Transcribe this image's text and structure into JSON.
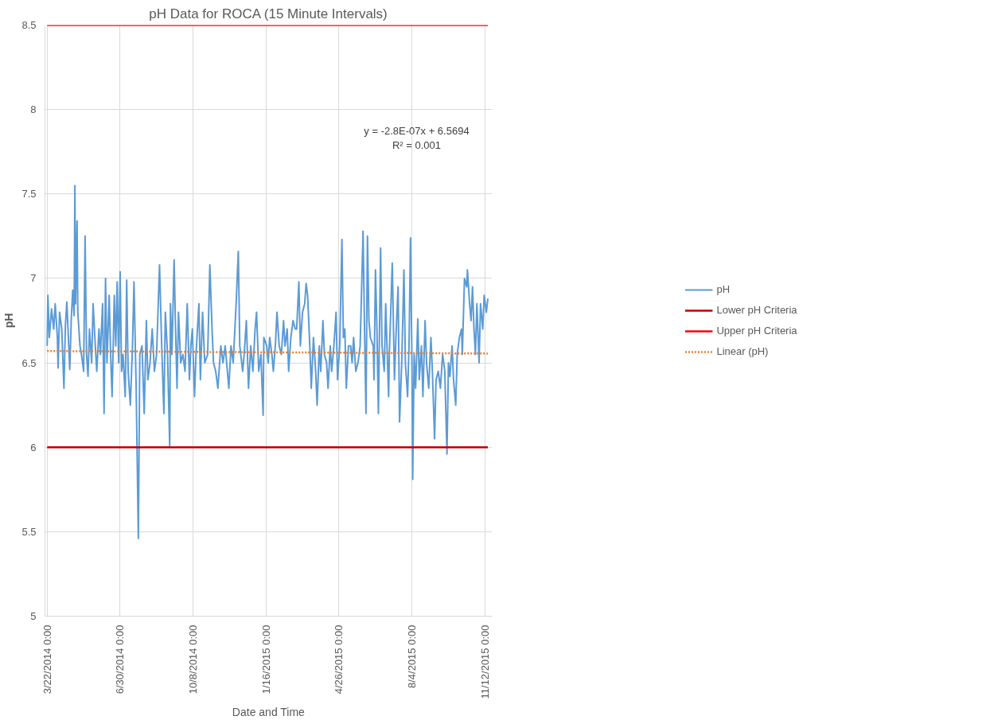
{
  "chart_data": {
    "type": "line",
    "title": "pH Data for ROCA (15 Minute Intervals)",
    "xlabel": "Date and Time",
    "ylabel": "pH",
    "xlim": [
      "2014-03-19",
      "2015-11-22"
    ],
    "xticks": [
      {
        "value": "2014-03-22",
        "label": "3/22/2014 0:00"
      },
      {
        "value": "2014-06-30",
        "label": "6/30/2014 0:00"
      },
      {
        "value": "2014-10-08",
        "label": "10/8/2014 0:00"
      },
      {
        "value": "2015-01-16",
        "label": "1/16/2015 0:00"
      },
      {
        "value": "2015-04-26",
        "label": "4/26/2015 0:00"
      },
      {
        "value": "2015-08-04",
        "label": "8/4/2015 0:00"
      },
      {
        "value": "2015-11-12",
        "label": "11/12/2015 0:00"
      }
    ],
    "ylim": [
      5,
      8.5
    ],
    "yticks": [
      5,
      5.5,
      6,
      6.5,
      7,
      7.5,
      8,
      8.5
    ],
    "grid": true,
    "legend": "right",
    "annotations": [
      "y = -2.8E-07x + 6.5694",
      "R² = 0.001"
    ],
    "series": [
      {
        "name": "pH",
        "color": "#5b9bd5",
        "x": [
          "2014-03-22",
          "2014-03-23",
          "2014-03-25",
          "2014-03-28",
          "2014-03-31",
          "2014-04-02",
          "2014-04-05",
          "2014-04-06",
          "2014-04-08",
          "2014-04-11",
          "2014-04-14",
          "2014-04-16",
          "2014-04-18",
          "2014-04-22",
          "2014-04-24",
          "2014-04-26",
          "2014-04-28",
          "2014-04-29",
          "2014-04-30",
          "2014-05-02",
          "2014-05-03",
          "2014-05-06",
          "2014-05-08",
          "2014-05-11",
          "2014-05-13",
          "2014-05-15",
          "2014-05-17",
          "2014-05-19",
          "2014-05-22",
          "2014-05-24",
          "2014-05-27",
          "2014-05-29",
          "2014-06-01",
          "2014-06-03",
          "2014-06-06",
          "2014-06-08",
          "2014-06-10",
          "2014-06-12",
          "2014-06-15",
          "2014-06-17",
          "2014-06-19",
          "2014-06-22",
          "2014-06-24",
          "2014-06-26",
          "2014-06-28",
          "2014-06-30",
          "2014-07-02",
          "2014-07-04",
          "2014-07-07",
          "2014-07-09",
          "2014-07-11",
          "2014-07-14",
          "2014-07-17",
          "2014-07-19",
          "2014-07-22",
          "2014-07-25",
          "2014-07-27",
          "2014-07-30",
          "2014-08-02",
          "2014-08-05",
          "2014-08-07",
          "2014-08-10",
          "2014-08-13",
          "2014-08-16",
          "2014-08-19",
          "2014-08-23",
          "2014-08-26",
          "2014-08-29",
          "2014-08-31",
          "2014-09-03",
          "2014-09-06",
          "2014-09-07",
          "2014-09-09",
          "2014-09-12",
          "2014-09-14",
          "2014-09-16",
          "2014-09-18",
          "2014-09-21",
          "2014-09-24",
          "2014-09-27",
          "2014-09-30",
          "2014-10-03",
          "2014-10-05",
          "2014-10-07",
          "2014-10-10",
          "2014-10-12",
          "2014-10-16",
          "2014-10-18",
          "2014-10-21",
          "2014-10-24",
          "2014-10-28",
          "2014-10-31",
          "2014-11-03",
          "2014-11-05",
          "2014-11-08",
          "2014-11-11",
          "2014-11-15",
          "2014-11-18",
          "2014-11-21",
          "2014-11-24",
          "2014-11-26",
          "2014-11-29",
          "2014-12-02",
          "2014-12-06",
          "2014-12-09",
          "2014-12-11",
          "2014-12-15",
          "2014-12-17",
          "2014-12-20",
          "2014-12-23",
          "2014-12-26",
          "2014-12-29",
          "2015-01-01",
          "2015-01-03",
          "2015-01-06",
          "2015-01-09",
          "2015-01-12",
          "2015-01-13",
          "2015-01-17",
          "2015-01-19",
          "2015-01-21",
          "2015-01-24",
          "2015-01-26",
          "2015-01-29",
          "2015-01-31",
          "2015-02-03",
          "2015-02-06",
          "2015-02-09",
          "2015-02-11",
          "2015-02-14",
          "2015-02-16",
          "2015-02-19",
          "2015-02-22",
          "2015-02-25",
          "2015-02-27",
          "2015-03-02",
          "2015-03-04",
          "2015-03-07",
          "2015-03-10",
          "2015-03-12",
          "2015-03-14",
          "2015-03-17",
          "2015-03-19",
          "2015-03-22",
          "2015-03-25",
          "2015-03-27",
          "2015-03-30",
          "2015-04-01",
          "2015-04-04",
          "2015-04-06",
          "2015-04-09",
          "2015-04-11",
          "2015-04-14",
          "2015-04-16",
          "2015-04-19",
          "2015-04-22",
          "2015-04-24",
          "2015-04-27",
          "2015-04-30",
          "2015-05-02",
          "2015-05-04",
          "2015-05-06",
          "2015-05-09",
          "2015-05-12",
          "2015-05-14",
          "2015-05-16",
          "2015-05-19",
          "2015-05-22",
          "2015-05-25",
          "2015-05-29",
          "2015-05-31",
          "2015-06-02",
          "2015-06-04",
          "2015-06-06",
          "2015-06-08",
          "2015-06-12",
          "2015-06-13",
          "2015-06-15",
          "2015-06-17",
          "2015-06-19",
          "2015-06-22",
          "2015-06-24",
          "2015-06-27",
          "2015-06-29",
          "2015-07-03",
          "2015-07-04",
          "2015-07-08",
          "2015-07-11",
          "2015-07-13",
          "2015-07-16",
          "2015-07-18",
          "2015-07-21",
          "2015-07-24",
          "2015-07-26",
          "2015-07-29",
          "2015-07-31",
          "2015-08-02",
          "2015-08-04",
          "2015-08-05",
          "2015-08-07",
          "2015-08-09",
          "2015-08-12",
          "2015-08-14",
          "2015-08-17",
          "2015-08-19",
          "2015-08-22",
          "2015-08-24",
          "2015-08-27",
          "2015-08-30",
          "2015-09-01",
          "2015-09-04",
          "2015-09-06",
          "2015-09-09",
          "2015-09-12",
          "2015-09-15",
          "2015-09-18",
          "2015-09-21",
          "2015-09-23",
          "2015-09-25",
          "2015-09-28",
          "2015-09-30",
          "2015-10-03",
          "2015-10-05",
          "2015-10-08",
          "2015-10-11",
          "2015-10-12",
          "2015-10-15",
          "2015-10-18",
          "2015-10-19",
          "2015-10-22",
          "2015-10-24",
          "2015-10-26",
          "2015-10-28",
          "2015-10-30",
          "2015-11-01",
          "2015-11-04",
          "2015-11-06",
          "2015-11-09",
          "2015-11-11",
          "2015-11-14",
          "2015-11-16"
        ],
        "values": [
          6.6,
          6.9,
          6.65,
          6.82,
          6.7,
          6.85,
          6.65,
          6.47,
          6.8,
          6.7,
          6.35,
          6.72,
          6.86,
          6.46,
          6.75,
          6.93,
          6.78,
          7.55,
          6.85,
          7.34,
          6.8,
          6.6,
          6.55,
          6.45,
          7.25,
          6.55,
          6.42,
          6.7,
          6.5,
          6.85,
          6.6,
          6.45,
          6.7,
          6.55,
          6.85,
          6.2,
          7.0,
          6.5,
          6.9,
          6.55,
          6.3,
          6.9,
          6.6,
          6.98,
          6.5,
          7.04,
          6.45,
          6.55,
          6.3,
          6.99,
          6.45,
          6.25,
          6.6,
          6.98,
          6.35,
          5.46,
          6.55,
          6.6,
          6.2,
          6.75,
          6.4,
          6.5,
          6.7,
          6.45,
          6.55,
          7.08,
          6.6,
          6.2,
          6.8,
          6.55,
          6.0,
          6.85,
          6.55,
          7.11,
          6.7,
          6.35,
          6.8,
          6.5,
          6.55,
          6.45,
          6.85,
          6.4,
          6.6,
          6.7,
          6.3,
          6.55,
          6.85,
          6.4,
          6.8,
          6.5,
          6.55,
          7.08,
          6.7,
          6.5,
          6.45,
          6.35,
          6.6,
          6.5,
          6.6,
          6.45,
          6.35,
          6.6,
          6.5,
          6.85,
          7.16,
          6.6,
          6.45,
          6.55,
          6.75,
          6.35,
          6.6,
          6.45,
          6.7,
          6.8,
          6.45,
          6.55,
          6.19,
          6.65,
          6.6,
          6.5,
          6.65,
          6.55,
          6.45,
          6.62,
          6.8,
          6.6,
          6.55,
          6.75,
          6.6,
          6.7,
          6.45,
          6.65,
          6.75,
          6.7,
          6.7,
          6.98,
          6.6,
          6.8,
          6.85,
          6.97,
          6.9,
          6.6,
          6.35,
          6.65,
          6.45,
          6.25,
          6.6,
          6.45,
          6.75,
          6.55,
          6.5,
          6.35,
          6.6,
          6.45,
          6.6,
          6.8,
          6.4,
          6.6,
          7.23,
          6.65,
          6.7,
          6.35,
          6.6,
          6.6,
          6.5,
          6.65,
          6.45,
          6.5,
          6.6,
          7.28,
          6.7,
          6.2,
          7.25,
          6.75,
          6.65,
          6.6,
          6.4,
          7.05,
          6.7,
          6.2,
          7.18,
          6.6,
          6.45,
          6.85,
          6.3,
          6.55,
          7.09,
          6.4,
          6.65,
          6.95,
          6.15,
          6.5,
          7.05,
          6.5,
          6.3,
          6.6,
          7.24,
          6.5,
          5.81,
          6.55,
          6.35,
          6.76,
          6.4,
          6.6,
          6.3,
          6.75,
          6.5,
          6.35,
          6.65,
          6.45,
          6.05,
          6.4,
          6.45,
          6.35,
          6.55,
          6.45,
          5.96,
          6.5,
          6.42,
          6.6,
          6.4,
          6.25,
          6.55,
          6.65,
          6.7,
          6.55,
          7.0,
          6.95,
          7.05,
          6.85,
          6.75,
          6.95,
          6.7,
          6.55,
          6.85,
          6.5,
          6.85,
          6.7,
          6.9,
          6.8,
          6.88
        ]
      },
      {
        "name": "Lower pH Criteria",
        "color": "#c00000",
        "x": [
          "2014-03-22",
          "2015-11-16"
        ],
        "values": [
          6,
          6
        ]
      },
      {
        "name": "Upper pH Criteria",
        "color": "#ff0000",
        "x": [
          "2014-03-22",
          "2015-11-16"
        ],
        "values": [
          8.5,
          8.5
        ]
      },
      {
        "name": "Linear (pH)",
        "color": "#ed7d31",
        "line_style": "dotted",
        "x": [
          "2014-03-22",
          "2015-11-16"
        ],
        "values": [
          6.57,
          6.555
        ]
      }
    ]
  }
}
